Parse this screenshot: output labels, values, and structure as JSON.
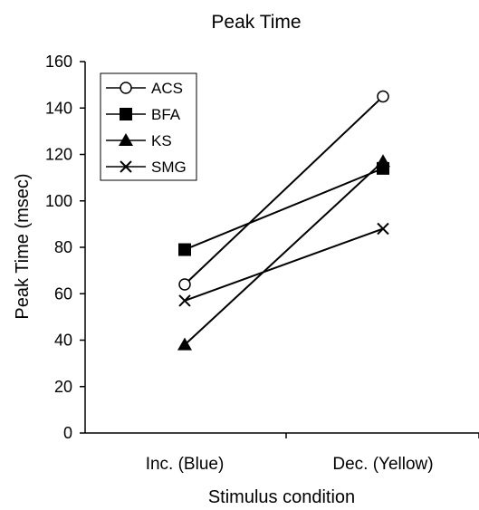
{
  "chart_data": {
    "type": "line",
    "title": "Peak Time",
    "xlabel": "Stimulus condition",
    "ylabel": "Peak Time (msec)",
    "categories": [
      "Inc. (Blue)",
      "Dec. (Yellow)"
    ],
    "ylim": [
      0,
      160
    ],
    "yticks": [
      0,
      20,
      40,
      60,
      80,
      100,
      120,
      140,
      160
    ],
    "grid": false,
    "legend_position": "top-left",
    "series": [
      {
        "name": "ACS",
        "marker": "open-circle",
        "values": [
          64,
          145
        ]
      },
      {
        "name": "BFA",
        "marker": "filled-square",
        "values": [
          79,
          114
        ]
      },
      {
        "name": "KS",
        "marker": "filled-triangle",
        "values": [
          38,
          117
        ]
      },
      {
        "name": "SMG",
        "marker": "x",
        "values": [
          57,
          88
        ]
      }
    ],
    "colors": {
      "line": "#000000",
      "background": "#ffffff"
    }
  }
}
